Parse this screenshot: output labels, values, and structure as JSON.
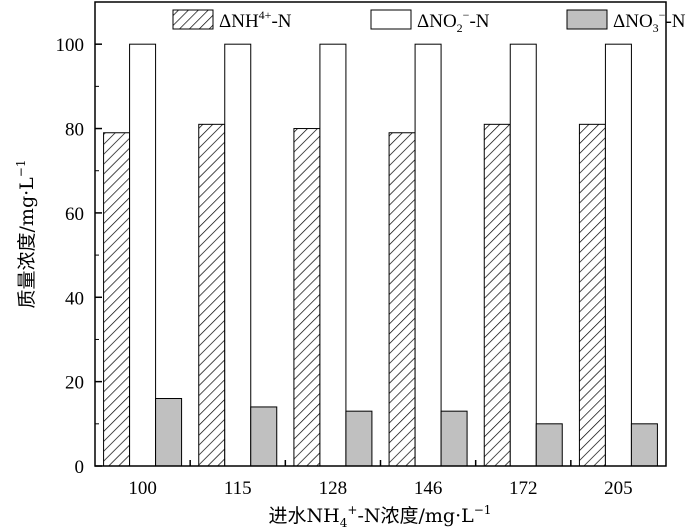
{
  "chart_data": {
    "type": "bar",
    "categories": [
      "100",
      "115",
      "128",
      "146",
      "172",
      "205"
    ],
    "series": [
      {
        "name_parts": [
          "ΔNH",
          "4",
          "+",
          "-N"
        ],
        "values": [
          79,
          81,
          80,
          79,
          81,
          81
        ],
        "fill": "hatch"
      },
      {
        "name_parts": [
          "ΔNO",
          "2",
          "−",
          "-N"
        ],
        "values": [
          100,
          100,
          100,
          100,
          100,
          100
        ],
        "fill": "#ffffff"
      },
      {
        "name_parts": [
          "ΔNO",
          "3",
          "−",
          "-N"
        ],
        "values": [
          16,
          14,
          13,
          13,
          10,
          10
        ],
        "fill": "#c0c0c0"
      }
    ],
    "yticks": [
      0,
      20,
      40,
      60,
      80,
      100
    ],
    "ylim": [
      0,
      110
    ],
    "ylabel_parts": [
      "质量浓度/mg·L",
      "−1"
    ],
    "xlabel_parts": [
      "进水NH",
      "4",
      "+",
      "-N浓度/mg·L",
      "−1"
    ],
    "legend_position": "top",
    "grid": false
  }
}
